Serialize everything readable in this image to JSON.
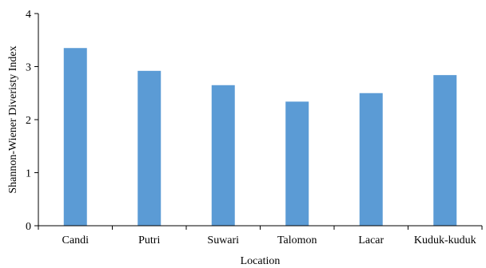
{
  "chart_data": {
    "type": "bar",
    "categories": [
      "Candi",
      "Putri",
      "Suwari",
      "Talomon",
      "Lacar",
      "Kuduk-kuduk"
    ],
    "values": [
      3.35,
      2.92,
      2.65,
      2.34,
      2.5,
      2.84
    ],
    "xlabel": "Location",
    "ylabel": "Shannon-Wiener  Diveristy Index",
    "ylim": [
      0,
      4
    ],
    "yticks": [
      0,
      1,
      2,
      3,
      4
    ],
    "grid": false,
    "legend": "none",
    "bar_color": "#5b9bd5",
    "axis_color": "#000000"
  }
}
